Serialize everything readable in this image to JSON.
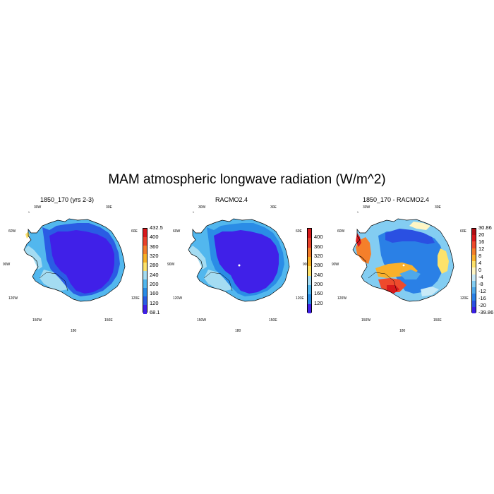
{
  "title": "MAM atmospheric longwave radiation (W/m^2)",
  "panels": [
    {
      "title": "1850_170 (yrs 2-3)",
      "kind": "model",
      "colorbar": {
        "labels": [
          "432.5",
          "400",
          "360",
          "320",
          "280",
          "240",
          "200",
          "160",
          "120",
          "68.1"
        ],
        "colors": [
          "#d7191c",
          "#e8412a",
          "#f37c2a",
          "#f8b125",
          "#fde26a",
          "#a4dcf2",
          "#52b7ee",
          "#2a8ce6",
          "#2a5ce4",
          "#4020e8"
        ]
      }
    },
    {
      "title": "RACMO2.4",
      "kind": "obs",
      "colorbar": {
        "labels": [
          "400",
          "360",
          "320",
          "280",
          "240",
          "200",
          "160",
          "120"
        ],
        "colors": [
          "#d7191c",
          "#e8412a",
          "#f37c2a",
          "#f8b125",
          "#fde26a",
          "#a4dcf2",
          "#52b7ee",
          "#2a8ce6",
          "#4020e8"
        ]
      }
    },
    {
      "title": "1850_170 - RACMO2.4",
      "kind": "diff",
      "colorbar": {
        "labels": [
          "30.86",
          "20",
          "16",
          "12",
          "8",
          "4",
          "0",
          "-4",
          "-8",
          "-12",
          "-16",
          "-20",
          "-39.86"
        ],
        "colors": [
          "#b10e13",
          "#d7191c",
          "#ee4a2c",
          "#f57f2a",
          "#f9b02b",
          "#fde26a",
          "#fff6c4",
          "#c8eaf8",
          "#83cdf2",
          "#4ea8ea",
          "#2a80e6",
          "#2a50e2",
          "#3a20e6"
        ]
      }
    }
  ],
  "lon_labels": {
    "top_left": "30W",
    "top_right": "30E",
    "upper_left": "60W",
    "upper_right": "60E",
    "mid_left": "90W",
    "mid_right": "90E",
    "lower_left": "120W",
    "lower_right": "120E",
    "bottom_left": "150W",
    "bottom_right": "150E",
    "bottom": "180"
  }
}
